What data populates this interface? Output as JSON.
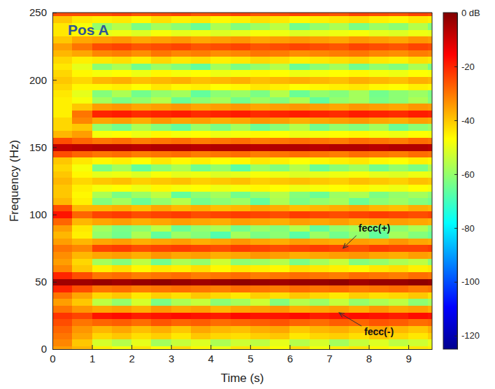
{
  "chart_data": {
    "type": "heatmap",
    "title": "Pos A",
    "x_label": "Time (s)",
    "y_label": "Frequency (Hz)",
    "xlim": [
      0,
      9.6
    ],
    "ylim": [
      0,
      250
    ],
    "xticks": [
      0,
      1,
      2,
      3,
      4,
      5,
      6,
      7,
      8,
      9
    ],
    "yticks": [
      0,
      50,
      100,
      150,
      200,
      250
    ],
    "x_bins": [
      0,
      0.5,
      1,
      1.5,
      2,
      2.5,
      3,
      3.5,
      4,
      4.5,
      5,
      5.5,
      6,
      6.5,
      7,
      7.5,
      8,
      8.5,
      9,
      9.5,
      9.6
    ],
    "y_bins": [
      0,
      2.5,
      7.5,
      12.5,
      17.5,
      22.5,
      27.5,
      32.5,
      37.5,
      42.5,
      47.5,
      52.5,
      57.5,
      62.5,
      67.5,
      72.5,
      77.5,
      82.5,
      87.5,
      92.5,
      97.5,
      102.5,
      107.5,
      112.5,
      117.5,
      122.5,
      127.5,
      132.5,
      137.5,
      142.5,
      147.5,
      152.5,
      157.5,
      162.5,
      167.5,
      172.5,
      177.5,
      182.5,
      187.5,
      192.5,
      197.5,
      202.5,
      207.5,
      212.5,
      217.5,
      222.5,
      227.5,
      232.5,
      237.5,
      242.5,
      247.5,
      250
    ],
    "cells": [
      [
        -35,
        -38,
        -45,
        -48,
        -44,
        -47,
        -43,
        -46,
        -49,
        -44,
        -45,
        -47,
        -43,
        -48,
        -45,
        -44,
        -46,
        -47,
        -44,
        -45
      ],
      [
        -32,
        -40,
        -52,
        -56,
        -50,
        -58,
        -54,
        -51,
        -57,
        -53,
        -55,
        -50,
        -56,
        -52,
        -58,
        -54,
        -51,
        -55,
        -53,
        -50
      ],
      [
        -30,
        -36,
        -42,
        -40,
        -43,
        -41,
        -44,
        -40,
        -42,
        -43,
        -41,
        -40,
        -44,
        -42,
        -41,
        -43,
        -40,
        -42,
        -44,
        -41
      ],
      [
        -28,
        -34,
        -38,
        -36,
        -39,
        -37,
        -40,
        -36,
        -38,
        -39,
        -37,
        -36,
        -40,
        -38,
        -37,
        -39,
        -36,
        -38,
        -40,
        -37
      ],
      [
        -25,
        -30,
        -28,
        -27,
        -29,
        -26,
        -28,
        -27,
        -29,
        -28,
        -27,
        -26,
        -28,
        -29,
        -27,
        -28,
        -26,
        -27,
        -29,
        -28
      ],
      [
        -22,
        -24,
        -18,
        -17,
        -19,
        -18,
        -17,
        -18,
        -19,
        -17,
        -18,
        -18,
        -17,
        -19,
        -18,
        -17,
        -18,
        -19,
        -17,
        -18
      ],
      [
        -30,
        -34,
        -36,
        -35,
        -37,
        -34,
        -36,
        -35,
        -38,
        -36,
        -35,
        -34,
        -37,
        -36,
        -35,
        -37,
        -34,
        -36,
        -35,
        -37
      ],
      [
        -35,
        -40,
        -55,
        -60,
        -52,
        -63,
        -57,
        -54,
        -61,
        -58,
        -53,
        -62,
        -56,
        -59,
        -54,
        -60,
        -57,
        -55,
        -61,
        -58
      ],
      [
        -30,
        -36,
        -42,
        -40,
        -44,
        -41,
        -43,
        -40,
        -42,
        -44,
        -41,
        -43,
        -40,
        -42,
        -44,
        -41,
        -43,
        -42,
        -40,
        -43
      ],
      [
        -20,
        -25,
        -30,
        -29,
        -31,
        -30,
        -29,
        -30,
        -31,
        -29,
        -30,
        -31,
        -29,
        -30,
        -29,
        -31,
        -30,
        -29,
        -31,
        -30
      ],
      [
        -4,
        -4,
        -3,
        -4,
        -3,
        -2,
        -3,
        -4,
        -3,
        -2,
        -3,
        -4,
        -3,
        -3,
        -2,
        -4,
        -3,
        -3,
        -2,
        -3
      ],
      [
        -20,
        -25,
        -30,
        -29,
        -31,
        -30,
        -29,
        -31,
        -30,
        -29,
        -31,
        -30,
        -29,
        -30,
        -31,
        -29,
        -30,
        -31,
        -29,
        -30
      ],
      [
        -32,
        -40,
        -45,
        -43,
        -46,
        -44,
        -45,
        -43,
        -46,
        -44,
        -45,
        -46,
        -43,
        -44,
        -45,
        -46,
        -44,
        -43,
        -45,
        -44
      ],
      [
        -35,
        -42,
        -58,
        -62,
        -55,
        -64,
        -57,
        -60,
        -53,
        -61,
        -59,
        -56,
        -63,
        -58,
        -54,
        -62,
        -60,
        -57,
        -55,
        -61
      ],
      [
        -33,
        -38,
        -36,
        -35,
        -37,
        -34,
        -36,
        -35,
        -37,
        -36,
        -34,
        -35,
        -37,
        -36,
        -35,
        -34,
        -36,
        -37,
        -35,
        -36
      ],
      [
        -30,
        -32,
        -24,
        -23,
        -25,
        -24,
        -23,
        -24,
        -25,
        -23,
        -24,
        -25,
        -24,
        -23,
        -24,
        -25,
        -23,
        -24,
        -24,
        -23
      ],
      [
        -35,
        -38,
        -36,
        -35,
        -37,
        -36,
        -35,
        -37,
        -36,
        -34,
        -36,
        -37,
        -35,
        -36,
        -37,
        -35,
        -36,
        -34,
        -36,
        -37
      ],
      [
        -38,
        -45,
        -60,
        -64,
        -57,
        -66,
        -59,
        -62,
        -68,
        -58,
        -63,
        -61,
        -67,
        -59,
        -64,
        -60,
        -66,
        -58,
        -62,
        -65
      ],
      [
        -35,
        -44,
        -58,
        -63,
        -61,
        -55,
        -65,
        -60,
        -57,
        -64,
        -59,
        -62,
        -56,
        -66,
        -60,
        -58,
        -63,
        -61,
        -57,
        -62
      ],
      [
        -28,
        -38,
        -36,
        -35,
        -37,
        -36,
        -35,
        -36,
        -37,
        -35,
        -36,
        -37,
        -35,
        -36,
        -35,
        -37,
        -36,
        -35,
        -36,
        -37
      ],
      [
        -18,
        -28,
        -24,
        -23,
        -25,
        -24,
        -23,
        -25,
        -24,
        -23,
        -24,
        -25,
        -23,
        -24,
        -25,
        -24,
        -23,
        -24,
        -25,
        -24
      ],
      [
        -25,
        -38,
        -38,
        -37,
        -39,
        -36,
        -38,
        -37,
        -39,
        -38,
        -36,
        -37,
        -39,
        -38,
        -37,
        -36,
        -38,
        -39,
        -37,
        -38
      ],
      [
        -38,
        -45,
        -62,
        -58,
        -65,
        -60,
        -56,
        -64,
        -61,
        -59,
        -66,
        -57,
        -63,
        -60,
        -58,
        -65,
        -61,
        -59,
        -62,
        -64
      ],
      [
        -40,
        -46,
        -57,
        -63,
        -59,
        -55,
        -66,
        -61,
        -58,
        -64,
        -60,
        -56,
        -62,
        -65,
        -59,
        -57,
        -63,
        -60,
        -58,
        -61
      ],
      [
        -40,
        -45,
        -48,
        -47,
        -49,
        -46,
        -48,
        -47,
        -49,
        -48,
        -46,
        -47,
        -49,
        -48,
        -47,
        -46,
        -48,
        -49,
        -47,
        -48
      ],
      [
        -38,
        -42,
        -40,
        -39,
        -41,
        -40,
        -39,
        -41,
        -40,
        -39,
        -41,
        -40,
        -39,
        -40,
        -41,
        -39,
        -40,
        -41,
        -39,
        -40
      ],
      [
        -40,
        -46,
        -50,
        -49,
        -51,
        -48,
        -50,
        -49,
        -51,
        -50,
        -48,
        -49,
        -51,
        -50,
        -49,
        -48,
        -50,
        -51,
        -49,
        -50
      ],
      [
        -42,
        -48,
        -63,
        -58,
        -66,
        -61,
        -57,
        -64,
        -60,
        -67,
        -59,
        -62,
        -56,
        -65,
        -61,
        -58,
        -64,
        -60,
        -63,
        -57
      ],
      [
        -40,
        -44,
        -46,
        -45,
        -47,
        -44,
        -46,
        -45,
        -47,
        -46,
        -44,
        -45,
        -47,
        -46,
        -45,
        -44,
        -46,
        -47,
        -45,
        -46
      ],
      [
        -25,
        -28,
        -30,
        -29,
        -31,
        -30,
        -29,
        -31,
        -30,
        -29,
        -31,
        -30,
        -29,
        -30,
        -31,
        -29,
        -30,
        -31,
        -29,
        -30
      ],
      [
        -8,
        -7,
        -6,
        -6,
        -7,
        -6,
        -6,
        -7,
        -6,
        -6,
        -7,
        -6,
        -6,
        -7,
        -6,
        -6,
        -7,
        -6,
        -6,
        -7
      ],
      [
        -25,
        -28,
        -30,
        -29,
        -31,
        -30,
        -29,
        -31,
        -30,
        -29,
        -31,
        -30,
        -29,
        -30,
        -31,
        -29,
        -30,
        -31,
        -29,
        -30
      ],
      [
        -38,
        -35,
        -48,
        -47,
        -49,
        -46,
        -48,
        -47,
        -49,
        -48,
        -46,
        -47,
        -49,
        -48,
        -47,
        -46,
        -48,
        -49,
        -47,
        -48
      ],
      [
        -42,
        -40,
        -60,
        -64,
        -57,
        -62,
        -66,
        -59,
        -63,
        -58,
        -65,
        -61,
        -56,
        -64,
        -60,
        -62,
        -58,
        -65,
        -61,
        -59
      ],
      [
        -42,
        -32,
        -36,
        -35,
        -37,
        -34,
        -36,
        -35,
        -37,
        -36,
        -34,
        -35,
        -37,
        -36,
        -35,
        -34,
        -36,
        -37,
        -35,
        -36
      ],
      [
        -45,
        -30,
        -20,
        -19,
        -21,
        -20,
        -19,
        -21,
        -20,
        -19,
        -21,
        -20,
        -19,
        -20,
        -21,
        -19,
        -20,
        -21,
        -19,
        -20
      ],
      [
        -45,
        -40,
        -35,
        -34,
        -36,
        -35,
        -34,
        -36,
        -35,
        -34,
        -36,
        -35,
        -34,
        -35,
        -36,
        -34,
        -35,
        -36,
        -34,
        -35
      ],
      [
        -45,
        -48,
        -58,
        -63,
        -60,
        -56,
        -65,
        -61,
        -58,
        -64,
        -59,
        -62,
        -57,
        -66,
        -60,
        -58,
        -63,
        -61,
        -57,
        -62
      ],
      [
        -44,
        -50,
        -62,
        -57,
        -64,
        -60,
        -58,
        -66,
        -61,
        -59,
        -63,
        -56,
        -65,
        -60,
        -62,
        -58,
        -64,
        -61,
        -59,
        -63
      ],
      [
        -42,
        -46,
        -46,
        -45,
        -47,
        -44,
        -46,
        -45,
        -47,
        -46,
        -44,
        -45,
        -47,
        -46,
        -45,
        -44,
        -46,
        -47,
        -45,
        -46
      ],
      [
        -40,
        -42,
        -38,
        -37,
        -39,
        -38,
        -37,
        -39,
        -38,
        -37,
        -39,
        -38,
        -37,
        -38,
        -39,
        -37,
        -38,
        -39,
        -37,
        -38
      ],
      [
        -42,
        -46,
        -48,
        -47,
        -49,
        -46,
        -48,
        -47,
        -49,
        -48,
        -46,
        -47,
        -49,
        -48,
        -47,
        -46,
        -48,
        -49,
        -47,
        -48
      ],
      [
        -44,
        -50,
        -61,
        -57,
        -64,
        -59,
        -62,
        -66,
        -58,
        -63,
        -60,
        -56,
        -65,
        -61,
        -58,
        -64,
        -60,
        -62,
        -57,
        -63
      ],
      [
        -42,
        -45,
        -44,
        -43,
        -45,
        -42,
        -44,
        -43,
        -45,
        -44,
        -42,
        -43,
        -45,
        -44,
        -43,
        -42,
        -44,
        -45,
        -43,
        -44
      ],
      [
        -38,
        -36,
        -32,
        -31,
        -33,
        -30,
        -32,
        -31,
        -33,
        -32,
        -30,
        -31,
        -33,
        -32,
        -31,
        -30,
        -32,
        -33,
        -31,
        -32
      ],
      [
        -35,
        -30,
        -25,
        -24,
        -26,
        -25,
        -24,
        -26,
        -25,
        -24,
        -26,
        -25,
        -24,
        -25,
        -26,
        -24,
        -25,
        -26,
        -24,
        -25
      ],
      [
        -40,
        -36,
        -35,
        -34,
        -36,
        -35,
        -34,
        -36,
        -35,
        -34,
        -36,
        -35,
        -34,
        -35,
        -36,
        -34,
        -35,
        -36,
        -34,
        -35
      ],
      [
        -44,
        -46,
        -50,
        -49,
        -51,
        -48,
        -50,
        -49,
        -51,
        -50,
        -48,
        -49,
        -51,
        -50,
        -49,
        -48,
        -50,
        -51,
        -49,
        -50
      ],
      [
        -44,
        -48,
        -60,
        -56,
        -63,
        -58,
        -61,
        -65,
        -57,
        -62,
        -59,
        -55,
        -64,
        -60,
        -57,
        -63,
        -59,
        -61,
        -56,
        -62
      ],
      [
        -40,
        -44,
        -45,
        -44,
        -46,
        -43,
        -45,
        -44,
        -46,
        -45,
        -43,
        -44,
        -46,
        -45,
        -44,
        -43,
        -45,
        -46,
        -44,
        -45
      ],
      [
        -25,
        -25,
        -25,
        -24,
        -26,
        -25,
        -24,
        -26,
        -25,
        -24,
        -26,
        -25,
        -24,
        -25,
        -26,
        -24,
        -25,
        -26,
        -24,
        -25
      ]
    ],
    "colorbar": {
      "lim": [
        -125,
        0
      ],
      "ticks": [
        {
          "value": 0,
          "label": "0 dB"
        },
        -20,
        -40,
        -60,
        -80,
        -100,
        -120
      ]
    },
    "annotations": [
      {
        "text": "fecc(+)",
        "x": 7.35,
        "y": 75
      },
      {
        "text": "fecc(-)",
        "x": 7.25,
        "y": 27
      }
    ]
  }
}
